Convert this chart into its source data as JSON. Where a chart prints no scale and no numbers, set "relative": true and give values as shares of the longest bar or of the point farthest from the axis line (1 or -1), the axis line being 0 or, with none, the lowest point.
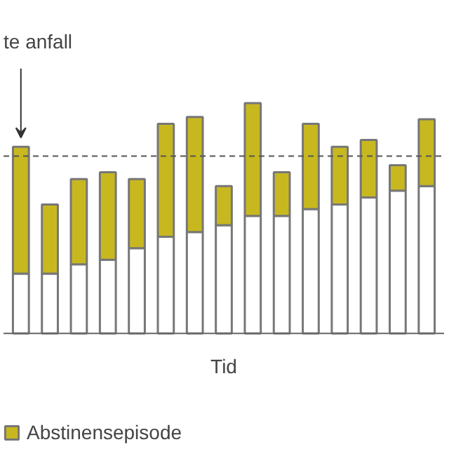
{
  "chart_data": {
    "type": "bar",
    "stacked": true,
    "relative": true,
    "xlabel": "Tid",
    "categories": [
      null,
      null,
      null,
      null,
      null,
      null,
      null,
      null,
      null,
      null,
      null,
      null,
      null,
      null,
      null
    ],
    "series": [
      {
        "color": "#ffffff",
        "values": [
          0.26,
          0.26,
          0.3,
          0.32,
          0.37,
          0.42,
          0.44,
          0.47,
          0.51,
          0.51,
          0.54,
          0.56,
          0.59,
          0.62,
          0.64
        ]
      },
      {
        "name": "Abstinensepisode",
        "color": "#c8b820",
        "values": [
          0.55,
          0.3,
          0.37,
          0.38,
          0.3,
          0.49,
          0.5,
          0.17,
          0.49,
          0.19,
          0.37,
          0.25,
          0.25,
          0.11,
          0.29
        ]
      }
    ],
    "ref_lines": [
      {
        "axis": "y",
        "value": 0.77,
        "line_style": "dashed",
        "color": "#555555"
      }
    ],
    "annotations": [
      "te anfall"
    ],
    "legend": "bottom",
    "grid": false
  }
}
